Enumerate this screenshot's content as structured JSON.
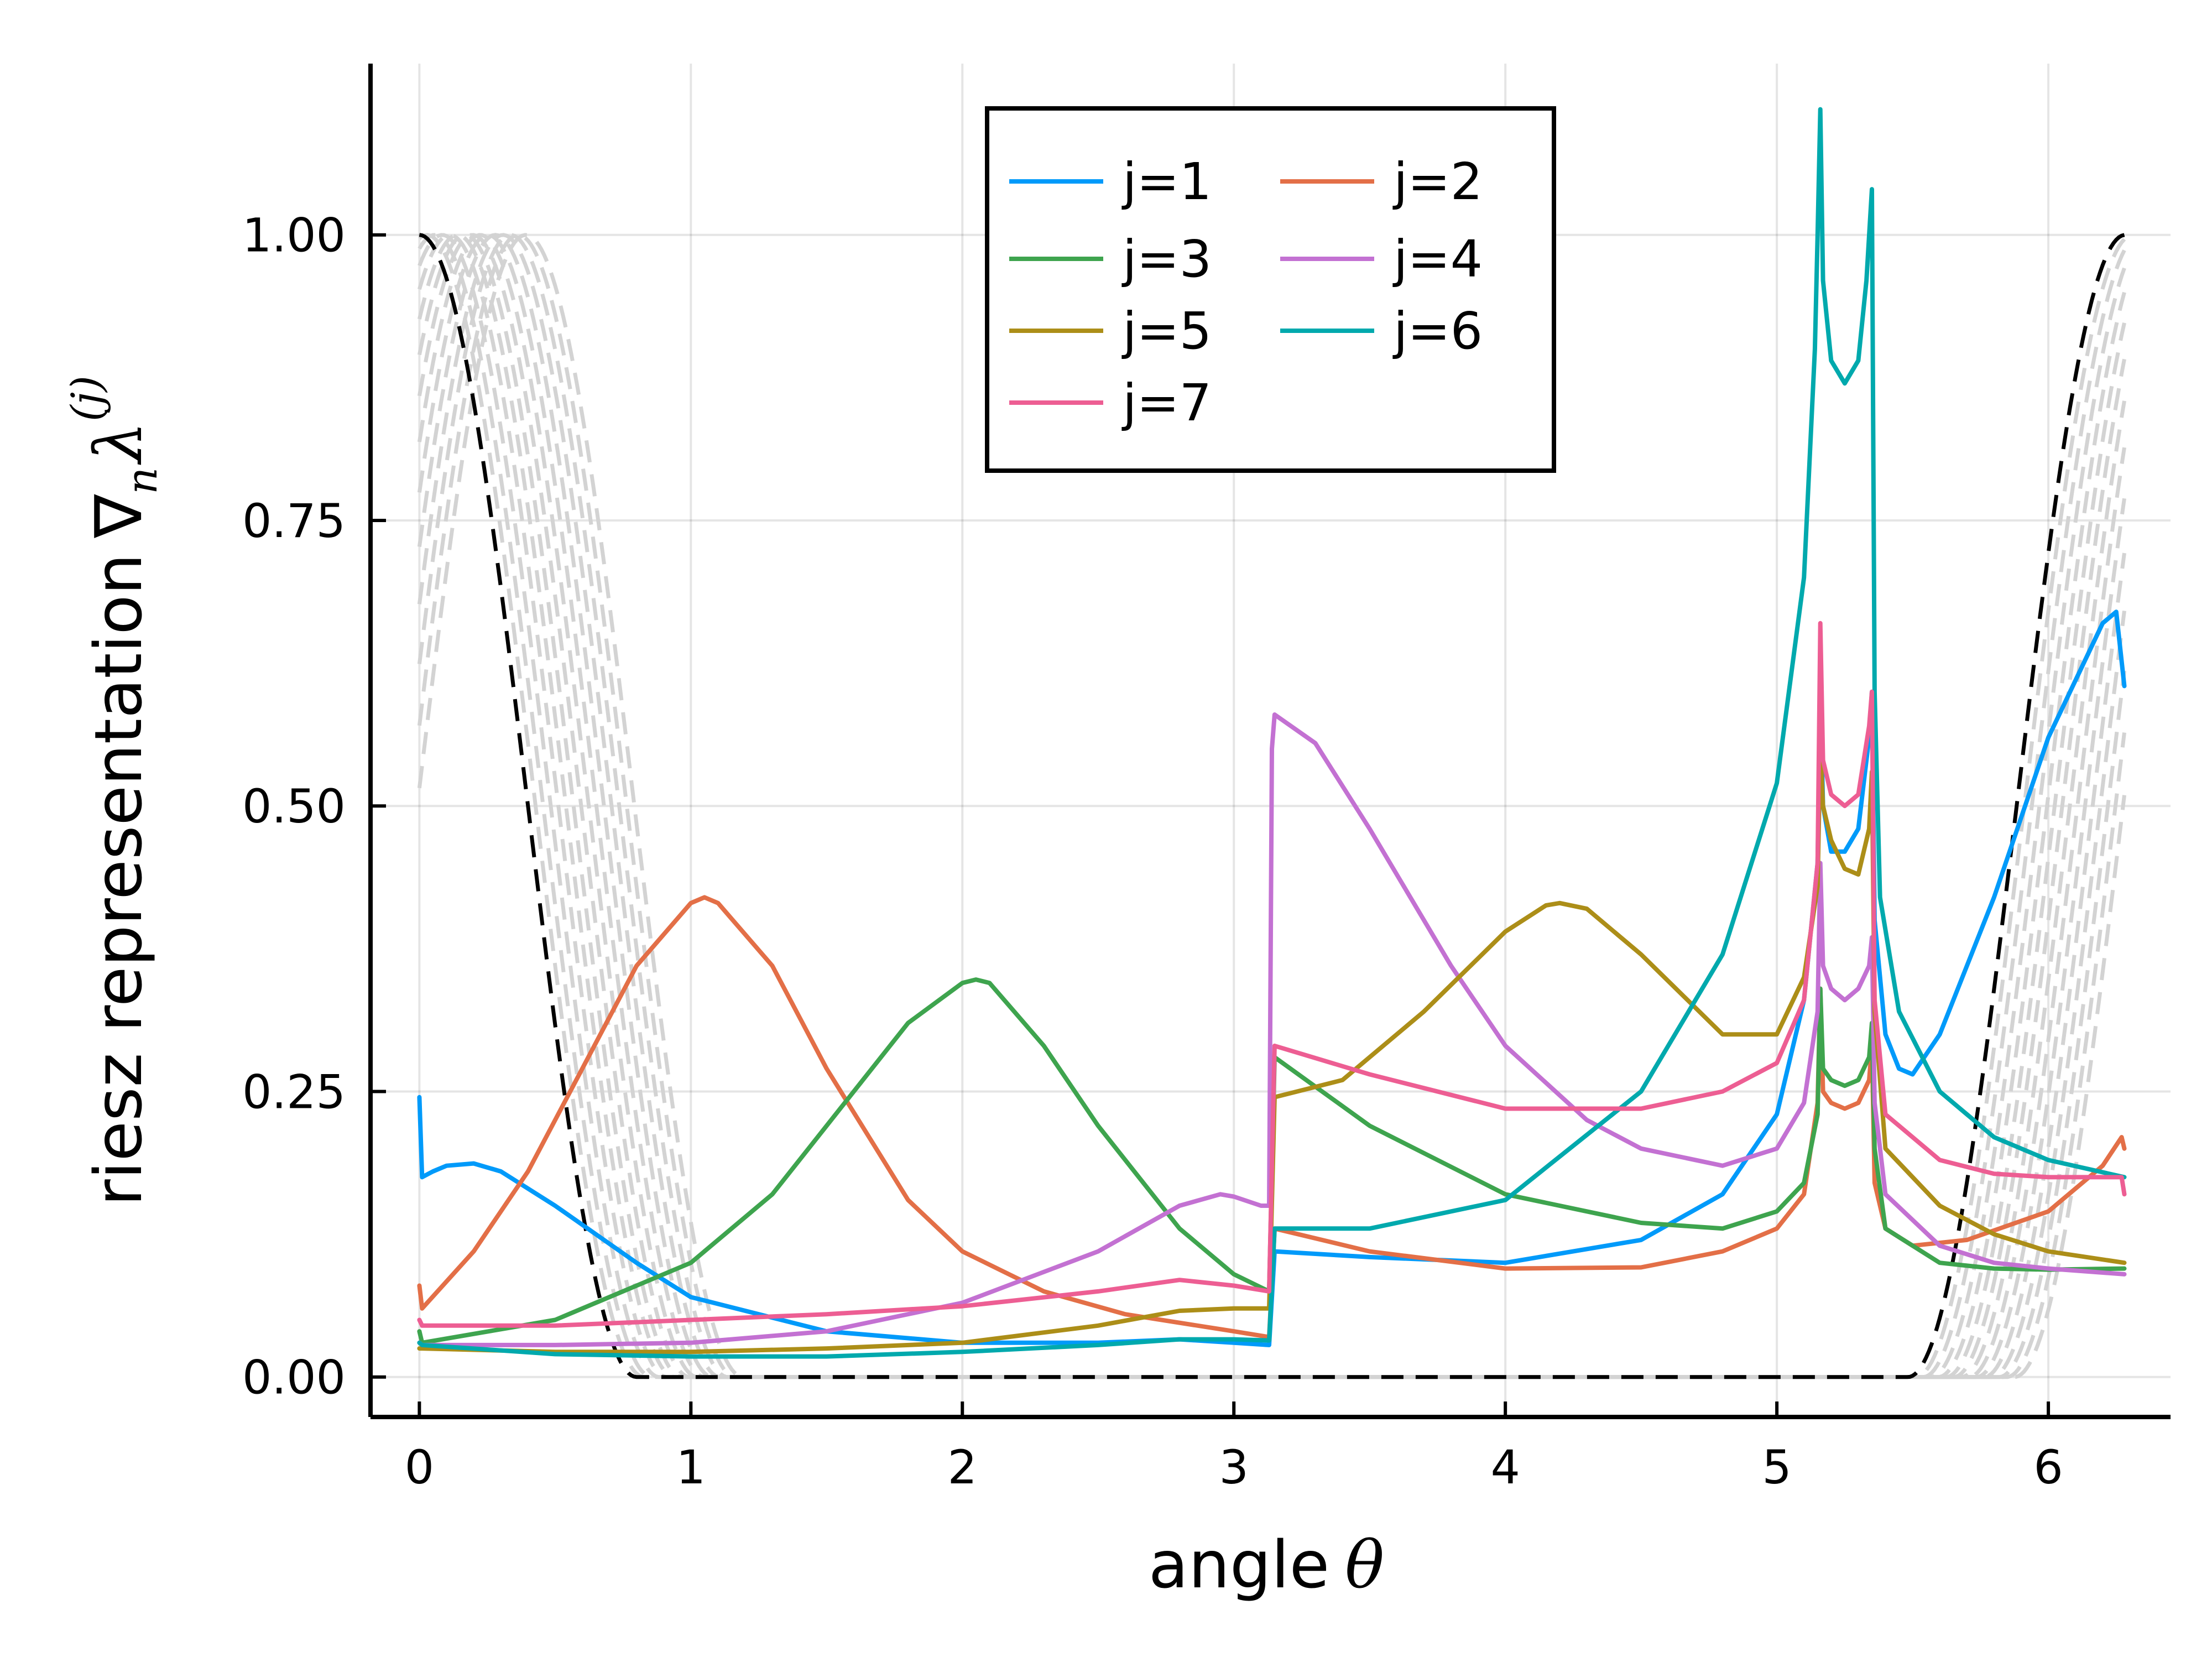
{
  "chart_data": {
    "type": "line",
    "xlabel": "angle",
    "xlabel_symbol": "θ",
    "ylabel": "riesz representation",
    "ylabel_symbol": "∇",
    "ylabel_sub": "n",
    "ylabel_symbol2": "λ",
    "ylabel_sup": "(j)",
    "xlim": [
      -0.18,
      6.45
    ],
    "ylim": [
      -0.035,
      1.15
    ],
    "xticks": [
      0,
      1,
      2,
      3,
      4,
      5,
      6
    ],
    "xtick_labels": [
      "0",
      "1",
      "2",
      "3",
      "4",
      "5",
      "6"
    ],
    "yticks": [
      0.0,
      0.25,
      0.5,
      0.75,
      1.0
    ],
    "ytick_labels": [
      "0.00",
      "0.25",
      "0.50",
      "0.75",
      "1.00"
    ],
    "grid": true,
    "legend_position": "top-center",
    "legend_columns": 2,
    "colors": {
      "j1": "#009AFA",
      "j2": "#E36F47",
      "j3": "#3EA44E",
      "j4": "#C371D2",
      "j5": "#AC8E18",
      "j6": "#00A9AD",
      "j7": "#ED5E93",
      "basis_gray": "#D3D3D3",
      "basis_black": "#000000"
    },
    "series": [
      {
        "name": "j=1",
        "color": "#009AFA",
        "x": [
          0.0,
          0.01,
          0.05,
          0.1,
          0.2,
          0.3,
          0.5,
          0.8,
          1.0,
          1.5,
          2.0,
          2.5,
          2.8,
          3.0,
          3.13,
          3.15,
          3.5,
          4.0,
          4.5,
          4.8,
          5.0,
          5.1,
          5.15,
          5.16,
          5.17,
          5.2,
          5.25,
          5.3,
          5.34,
          5.35,
          5.36,
          5.4,
          5.45,
          5.5,
          5.6,
          5.8,
          6.0,
          6.2,
          6.25,
          6.28
        ],
        "y": [
          0.245,
          0.175,
          0.18,
          0.185,
          0.187,
          0.18,
          0.15,
          0.1,
          0.07,
          0.04,
          0.03,
          0.03,
          0.033,
          0.03,
          0.028,
          0.11,
          0.105,
          0.1,
          0.12,
          0.16,
          0.23,
          0.33,
          0.45,
          0.6,
          0.5,
          0.46,
          0.46,
          0.48,
          0.56,
          0.6,
          0.4,
          0.3,
          0.27,
          0.265,
          0.3,
          0.42,
          0.56,
          0.66,
          0.67,
          0.605
        ]
      },
      {
        "name": "j=2",
        "color": "#E36F47",
        "x": [
          0.0,
          0.01,
          0.2,
          0.4,
          0.6,
          0.8,
          1.0,
          1.05,
          1.1,
          1.3,
          1.5,
          1.8,
          2.0,
          2.3,
          2.6,
          3.0,
          3.13,
          3.15,
          3.5,
          4.0,
          4.5,
          4.8,
          5.0,
          5.1,
          5.15,
          5.16,
          5.17,
          5.2,
          5.25,
          5.3,
          5.34,
          5.35,
          5.36,
          5.4,
          5.5,
          5.7,
          6.0,
          6.2,
          6.27,
          6.28
        ],
        "y": [
          0.08,
          0.06,
          0.11,
          0.18,
          0.27,
          0.36,
          0.415,
          0.42,
          0.415,
          0.36,
          0.27,
          0.155,
          0.11,
          0.075,
          0.055,
          0.04,
          0.035,
          0.13,
          0.11,
          0.095,
          0.096,
          0.11,
          0.13,
          0.16,
          0.24,
          0.34,
          0.25,
          0.24,
          0.235,
          0.24,
          0.26,
          0.29,
          0.17,
          0.13,
          0.115,
          0.12,
          0.145,
          0.185,
          0.21,
          0.2
        ]
      },
      {
        "name": "j=3",
        "color": "#3EA44E",
        "x": [
          0.0,
          0.01,
          0.5,
          1.0,
          1.3,
          1.6,
          1.8,
          2.0,
          2.05,
          2.1,
          2.3,
          2.5,
          2.8,
          3.0,
          3.13,
          3.15,
          3.5,
          4.0,
          4.5,
          4.8,
          5.0,
          5.1,
          5.15,
          5.16,
          5.17,
          5.2,
          5.25,
          5.3,
          5.34,
          5.35,
          5.36,
          5.4,
          5.6,
          5.8,
          6.0,
          6.28
        ],
        "y": [
          0.04,
          0.03,
          0.05,
          0.1,
          0.16,
          0.25,
          0.31,
          0.345,
          0.348,
          0.345,
          0.29,
          0.22,
          0.13,
          0.09,
          0.075,
          0.28,
          0.22,
          0.16,
          0.135,
          0.13,
          0.145,
          0.17,
          0.23,
          0.34,
          0.27,
          0.26,
          0.255,
          0.26,
          0.28,
          0.31,
          0.2,
          0.13,
          0.1,
          0.095,
          0.094,
          0.095
        ]
      },
      {
        "name": "j=4",
        "color": "#C371D2",
        "x": [
          0.0,
          0.01,
          0.5,
          1.0,
          1.5,
          2.0,
          2.5,
          2.8,
          2.95,
          3.0,
          3.1,
          3.13,
          3.14,
          3.15,
          3.3,
          3.5,
          3.8,
          4.0,
          4.3,
          4.5,
          4.8,
          5.0,
          5.1,
          5.15,
          5.16,
          5.17,
          5.2,
          5.25,
          5.3,
          5.34,
          5.35,
          5.36,
          5.4,
          5.6,
          5.8,
          6.0,
          6.28
        ],
        "y": [
          0.03,
          0.028,
          0.028,
          0.03,
          0.04,
          0.065,
          0.11,
          0.15,
          0.16,
          0.158,
          0.15,
          0.15,
          0.55,
          0.58,
          0.555,
          0.48,
          0.36,
          0.29,
          0.225,
          0.2,
          0.185,
          0.2,
          0.24,
          0.32,
          0.45,
          0.36,
          0.34,
          0.33,
          0.34,
          0.36,
          0.385,
          0.24,
          0.16,
          0.115,
          0.1,
          0.095,
          0.09
        ]
      },
      {
        "name": "j=5",
        "color": "#AC8E18",
        "x": [
          0.0,
          0.01,
          0.5,
          1.0,
          1.5,
          2.0,
          2.5,
          2.8,
          3.0,
          3.13,
          3.15,
          3.4,
          3.7,
          4.0,
          4.15,
          4.2,
          4.3,
          4.5,
          4.8,
          5.0,
          5.1,
          5.15,
          5.16,
          5.17,
          5.2,
          5.25,
          5.3,
          5.34,
          5.35,
          5.36,
          5.4,
          5.6,
          5.8,
          6.0,
          6.28
        ],
        "y": [
          0.025,
          0.025,
          0.022,
          0.022,
          0.025,
          0.03,
          0.045,
          0.058,
          0.06,
          0.06,
          0.245,
          0.26,
          0.32,
          0.39,
          0.413,
          0.415,
          0.41,
          0.37,
          0.3,
          0.3,
          0.35,
          0.43,
          0.55,
          0.5,
          0.47,
          0.445,
          0.44,
          0.48,
          0.53,
          0.32,
          0.2,
          0.15,
          0.125,
          0.11,
          0.1
        ]
      },
      {
        "name": "j=6",
        "color": "#00A9AD",
        "x": [
          0.0,
          0.01,
          0.5,
          1.0,
          1.5,
          2.0,
          2.5,
          2.8,
          3.0,
          3.13,
          3.15,
          3.5,
          4.0,
          4.5,
          4.8,
          5.0,
          5.1,
          5.14,
          5.15,
          5.16,
          5.17,
          5.2,
          5.25,
          5.3,
          5.33,
          5.35,
          5.36,
          5.38,
          5.45,
          5.6,
          5.8,
          6.0,
          6.28
        ],
        "y": [
          0.03,
          0.028,
          0.02,
          0.018,
          0.018,
          0.022,
          0.028,
          0.033,
          0.033,
          0.032,
          0.13,
          0.13,
          0.155,
          0.25,
          0.37,
          0.52,
          0.7,
          0.9,
          1.0,
          1.11,
          0.96,
          0.89,
          0.87,
          0.89,
          0.96,
          1.04,
          0.6,
          0.42,
          0.32,
          0.25,
          0.21,
          0.19,
          0.175
        ]
      },
      {
        "name": "j=7",
        "color": "#ED5E93",
        "x": [
          0.0,
          0.01,
          0.5,
          1.0,
          1.5,
          2.0,
          2.5,
          2.8,
          3.0,
          3.13,
          3.15,
          3.5,
          4.0,
          4.5,
          4.8,
          5.0,
          5.1,
          5.15,
          5.16,
          5.17,
          5.2,
          5.25,
          5.3,
          5.34,
          5.35,
          5.36,
          5.4,
          5.6,
          5.8,
          6.0,
          6.27,
          6.28
        ],
        "y": [
          0.05,
          0.045,
          0.045,
          0.05,
          0.055,
          0.062,
          0.075,
          0.085,
          0.08,
          0.075,
          0.29,
          0.265,
          0.235,
          0.235,
          0.25,
          0.275,
          0.33,
          0.45,
          0.66,
          0.54,
          0.51,
          0.5,
          0.51,
          0.57,
          0.6,
          0.33,
          0.23,
          0.19,
          0.178,
          0.175,
          0.175,
          0.16
        ]
      }
    ]
  }
}
